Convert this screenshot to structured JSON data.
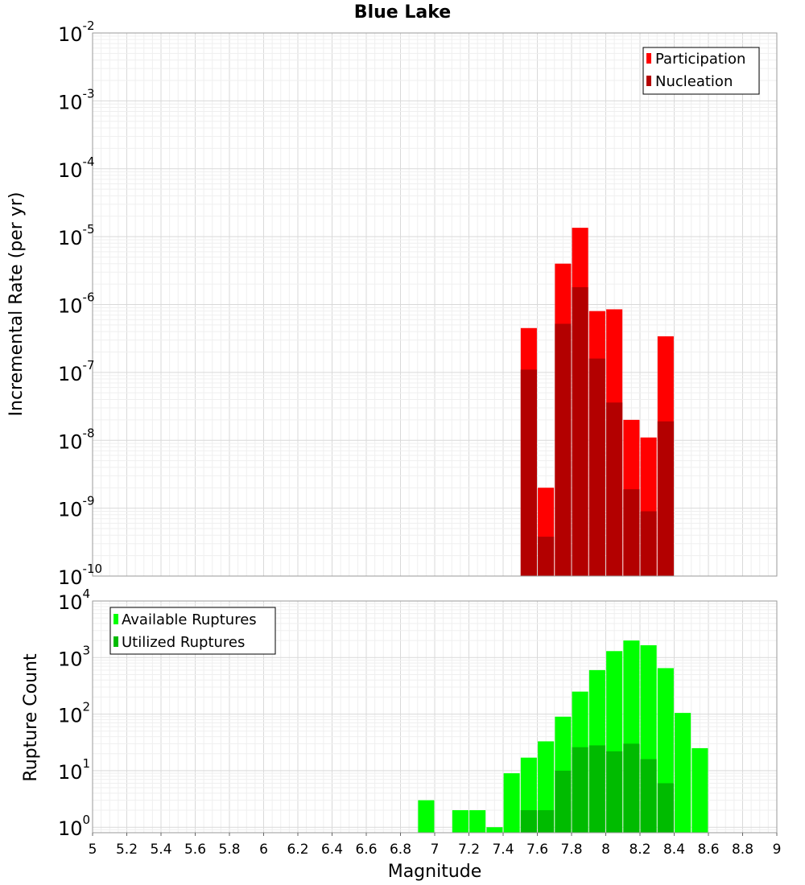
{
  "title": "Blue Lake",
  "colors": {
    "participation": "#ff0000",
    "nucleation": "#b30000",
    "available": "#00ff00",
    "utilized": "#00bb00"
  },
  "chart_data": [
    {
      "type": "bar",
      "panel": "top",
      "ylabel": "Incremental Rate (per yr)",
      "xlim": [
        5,
        9
      ],
      "ylim": [
        1e-10,
        0.01
      ],
      "yscale": "log",
      "ytick_exponents": [
        -2,
        -3,
        -4,
        -5,
        -6,
        -7,
        -8,
        -9,
        -10
      ],
      "grid": true,
      "legend_position": "top-right",
      "x": [
        7.55,
        7.65,
        7.75,
        7.85,
        7.95,
        8.05,
        8.15,
        8.25,
        8.35
      ],
      "series": [
        {
          "name": "Participation",
          "values": [
            4.5e-07,
            2e-09,
            4e-06,
            1.35e-05,
            8e-07,
            8.5e-07,
            2e-08,
            1.1e-08,
            3.4e-07
          ]
        },
        {
          "name": "Nucleation",
          "values": [
            1.1e-07,
            3.8e-10,
            5.2e-07,
            1.8e-06,
            1.6e-07,
            3.6e-08,
            1.9e-09,
            9e-10,
            1.9e-08
          ]
        }
      ]
    },
    {
      "type": "bar",
      "panel": "bottom",
      "xlabel": "Magnitude",
      "ylabel": "Rupture Count",
      "xlim": [
        5,
        9
      ],
      "ylim": [
        0.8,
        10000
      ],
      "yscale": "log",
      "ytick_exponents": [
        4,
        3,
        2,
        1,
        0
      ],
      "xticks": [
        "5",
        "5.2",
        "5.4",
        "5.6",
        "5.8",
        "6",
        "6.2",
        "6.4",
        "6.6",
        "6.8",
        "7",
        "7.2",
        "7.4",
        "7.6",
        "7.8",
        "8",
        "8.2",
        "8.4",
        "8.6",
        "8.8",
        "9"
      ],
      "grid": true,
      "legend_position": "top-left",
      "x": [
        6.95,
        7.15,
        7.25,
        7.35,
        7.45,
        7.55,
        7.65,
        7.75,
        7.85,
        7.95,
        8.05,
        8.15,
        8.25,
        8.35,
        8.45,
        8.55
      ],
      "series": [
        {
          "name": "Available Ruptures",
          "values": [
            3,
            2,
            2,
            1,
            9,
            17,
            33,
            90,
            250,
            600,
            1300,
            2000,
            1650,
            650,
            105,
            25
          ]
        },
        {
          "name": "Utilized Ruptures",
          "values": [
            0,
            0,
            0,
            0,
            0,
            2,
            2,
            10,
            26,
            28,
            22,
            30,
            16,
            6,
            0,
            0
          ]
        }
      ]
    }
  ]
}
